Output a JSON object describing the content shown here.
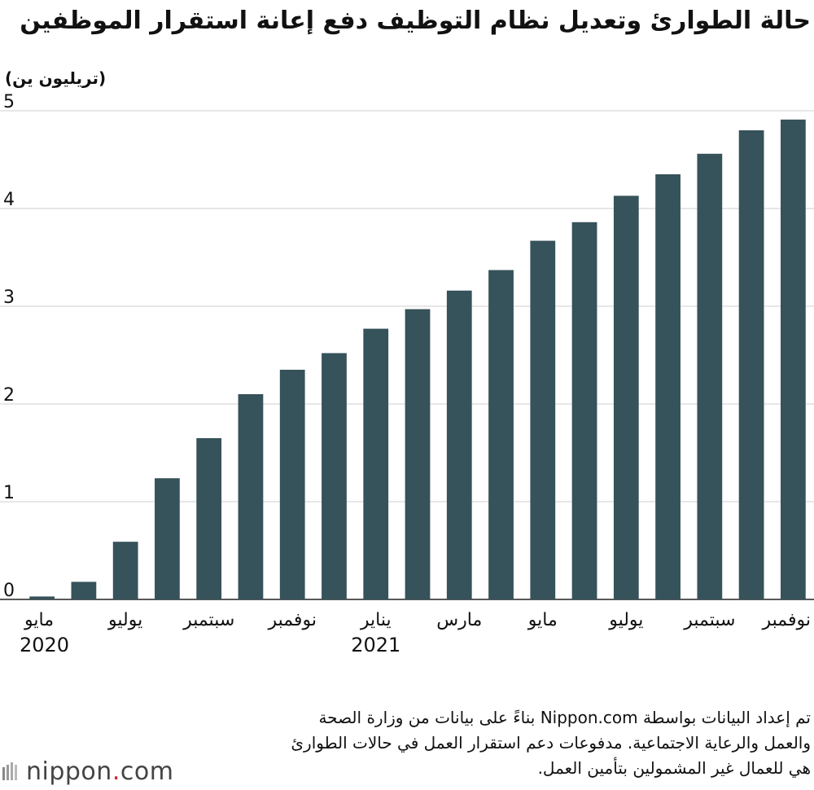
{
  "title": "حالة الطوارئ وتعديل نظام التوظيف دفع إعانة استقرار الموظفين",
  "unit_label": "(تريليون ين)",
  "chart_data": {
    "type": "bar",
    "title": "حالة الطوارئ وتعديل نظام التوظيف دفع إعانة استقرار الموظفين",
    "ylabel": "(تريليون ين)",
    "xlabel": "",
    "ylim": [
      0,
      5
    ],
    "yticks": [
      "0",
      "1",
      "2",
      "3",
      "4",
      "5"
    ],
    "grid": true,
    "bar_color": "#36525a",
    "categories": [
      "2020-05",
      "2020-06",
      "2020-07",
      "2020-08",
      "2020-09",
      "2020-10",
      "2020-11",
      "2020-12",
      "2021-01",
      "2021-02",
      "2021-03",
      "2021-04",
      "2021-05",
      "2021-06",
      "2021-07",
      "2021-08",
      "2021-09",
      "2021-10",
      "2021-11"
    ],
    "values": [
      0.03,
      0.18,
      0.59,
      1.24,
      1.65,
      2.1,
      2.35,
      2.52,
      2.77,
      2.97,
      3.16,
      3.37,
      3.67,
      3.86,
      4.13,
      4.35,
      4.56,
      4.8,
      4.91
    ],
    "month_labels": [
      {
        "index": 0,
        "text": "مايو"
      },
      {
        "index": 2,
        "text": "يوليو"
      },
      {
        "index": 4,
        "text": "سبتمبر"
      },
      {
        "index": 6,
        "text": "نوفمبر"
      },
      {
        "index": 8,
        "text": "يناير"
      },
      {
        "index": 10,
        "text": "مارس"
      },
      {
        "index": 12,
        "text": "مايو"
      },
      {
        "index": 14,
        "text": "يوليو"
      },
      {
        "index": 16,
        "text": "سبتمبر"
      },
      {
        "index": 18,
        "text": "نوفمبر"
      }
    ],
    "year_labels": [
      {
        "index": 0,
        "text": "2020"
      },
      {
        "index": 8,
        "text": "2021"
      }
    ]
  },
  "footnote": [
    "تم إعداد البيانات بواسطة Nippon.com بناءً على بيانات من وزارة الصحة",
    "والعمل والرعاية الاجتماعية. مدفوعات دعم استقرار العمل في حالات الطوارئ",
    "هي للعمال غير المشمولين بتأمين العمل."
  ],
  "logo": {
    "main": "nippon",
    "dot": ".",
    "tld": "com"
  }
}
